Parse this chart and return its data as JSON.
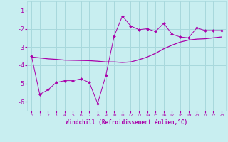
{
  "xlabel": "Windchill (Refroidissement éolien,°C)",
  "bg_color": "#c8eef0",
  "grid_color": "#a8d8dc",
  "line_color": "#aa00aa",
  "xlim": [
    -0.5,
    23.5
  ],
  "ylim": [
    -6.5,
    -0.5
  ],
  "yticks": [
    -6,
    -5,
    -4,
    -3,
    -2,
    -1
  ],
  "xticks": [
    0,
    1,
    2,
    3,
    4,
    5,
    6,
    7,
    8,
    9,
    10,
    11,
    12,
    13,
    14,
    15,
    16,
    17,
    18,
    19,
    20,
    21,
    22,
    23
  ],
  "jagged_x": [
    0,
    1,
    2,
    3,
    4,
    5,
    6,
    7,
    8,
    9,
    10,
    11,
    12,
    13,
    14,
    15,
    16,
    17,
    18,
    19,
    20,
    21,
    22,
    23
  ],
  "jagged_y": [
    -3.5,
    -5.6,
    -5.35,
    -4.95,
    -4.85,
    -4.85,
    -4.75,
    -4.95,
    -6.1,
    -4.55,
    -2.4,
    -1.3,
    -1.85,
    -2.05,
    -2.0,
    -2.15,
    -1.7,
    -2.3,
    -2.45,
    -2.5,
    -1.95,
    -2.1,
    -2.1,
    -2.1
  ],
  "smooth_x": [
    0,
    1,
    2,
    3,
    4,
    5,
    6,
    7,
    8,
    9,
    10,
    11,
    12,
    13,
    14,
    15,
    16,
    17,
    18,
    19,
    20,
    21,
    22,
    23
  ],
  "smooth_y": [
    -3.55,
    -3.6,
    -3.65,
    -3.68,
    -3.72,
    -3.73,
    -3.74,
    -3.75,
    -3.78,
    -3.82,
    -3.82,
    -3.85,
    -3.82,
    -3.7,
    -3.55,
    -3.35,
    -3.1,
    -2.9,
    -2.73,
    -2.62,
    -2.57,
    -2.55,
    -2.5,
    -2.45
  ],
  "ytick_labels": [
    "-6",
    "-5",
    "-4",
    "-3",
    "-2",
    "-1"
  ],
  "xtick_labels": [
    "0",
    "1",
    "2",
    "3",
    "4",
    "5",
    "6",
    "7",
    "8",
    "9",
    "10",
    "11",
    "12",
    "13",
    "14",
    "15",
    "16",
    "17",
    "18",
    "19",
    "20",
    "21",
    "22",
    "23"
  ]
}
